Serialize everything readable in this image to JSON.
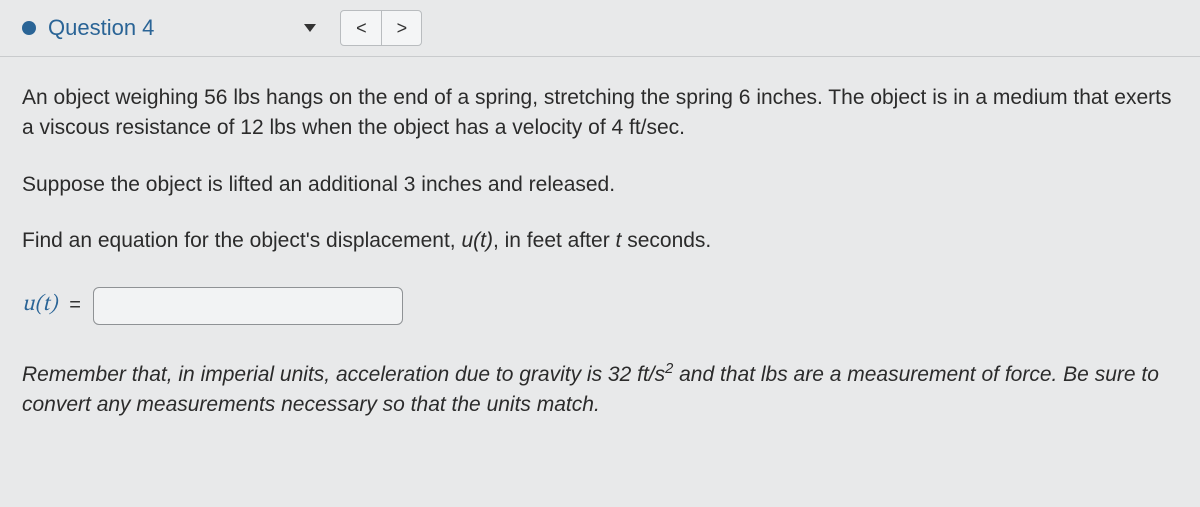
{
  "header": {
    "title": "Question 4",
    "status_color": "#2a6496",
    "prev_glyph": "<",
    "next_glyph": ">"
  },
  "body": {
    "para1_a": "An object weighing 56 lbs hangs on the end of a spring, stretching the spring 6 inches. The object is in a medium that exerts a viscous resistance of 12 lbs when the object has a velocity of 4 ft/sec.",
    "para2": "Suppose the object is lifted an additional 3 inches and released.",
    "prompt_pre": "Find an equation for the object's displacement, ",
    "prompt_ut": "u(t)",
    "prompt_mid": ", in feet after ",
    "prompt_t": "t",
    "prompt_post": " seconds."
  },
  "answer": {
    "label": "u(t)",
    "equals": "=",
    "value": "",
    "placeholder": ""
  },
  "note": {
    "pre": "Remember that, in imperial units, acceleration due to gravity is 32 ft/s",
    "sup": "2",
    "post": " and that lbs are a measurement of force. Be sure to convert any measurements necessary so that the units match."
  },
  "colors": {
    "link": "#2a6496",
    "bg": "#e8e9ea",
    "border": "#b9bcbf"
  }
}
